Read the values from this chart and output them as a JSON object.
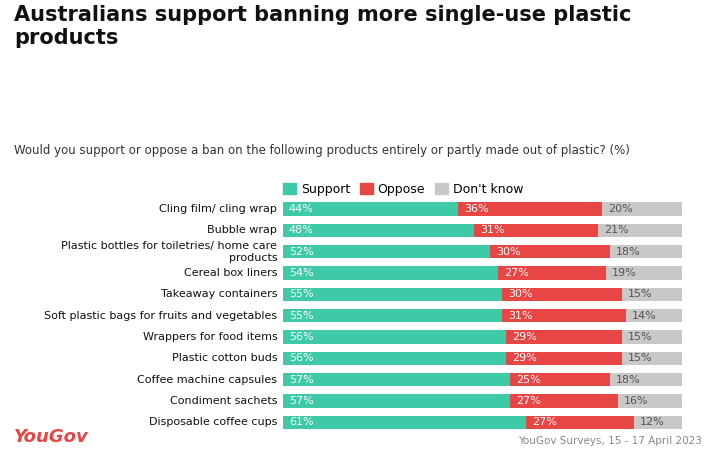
{
  "title": "Australians support banning more single-use plastic\nproducts",
  "subtitle": "Would you support or oppose a ban on the following products entirely or partly made out of plastic? (%)",
  "source": "YouGov Surveys, 15 - 17 April 2023",
  "brand": "YouGov",
  "categories": [
    "Disposable coffee cups",
    "Condiment sachets",
    "Coffee machine capsules",
    "Plastic cotton buds",
    "Wrappers for food items",
    "Soft plastic bags for fruits and vegetables",
    "Takeaway containers",
    "Cereal box liners",
    "Plastic bottles for toiletries/ home care\nproducts",
    "Bubble wrap",
    "Cling film/ cling wrap"
  ],
  "support": [
    61,
    57,
    57,
    56,
    56,
    55,
    55,
    54,
    52,
    48,
    44
  ],
  "oppose": [
    27,
    27,
    25,
    29,
    29,
    31,
    30,
    27,
    30,
    31,
    36
  ],
  "dont_know": [
    12,
    16,
    18,
    15,
    15,
    14,
    15,
    19,
    18,
    21,
    20
  ],
  "support_color": "#3ec9a7",
  "oppose_color": "#e84545",
  "dont_know_color": "#c8c8c8",
  "background_color": "#ffffff",
  "bar_height": 0.62,
  "title_fontsize": 15,
  "subtitle_fontsize": 8.5,
  "bar_label_fontsize": 8,
  "cat_label_fontsize": 8,
  "legend_fontsize": 9,
  "brand_color": "#e84545",
  "brand_fontsize": 13,
  "source_fontsize": 7.5
}
